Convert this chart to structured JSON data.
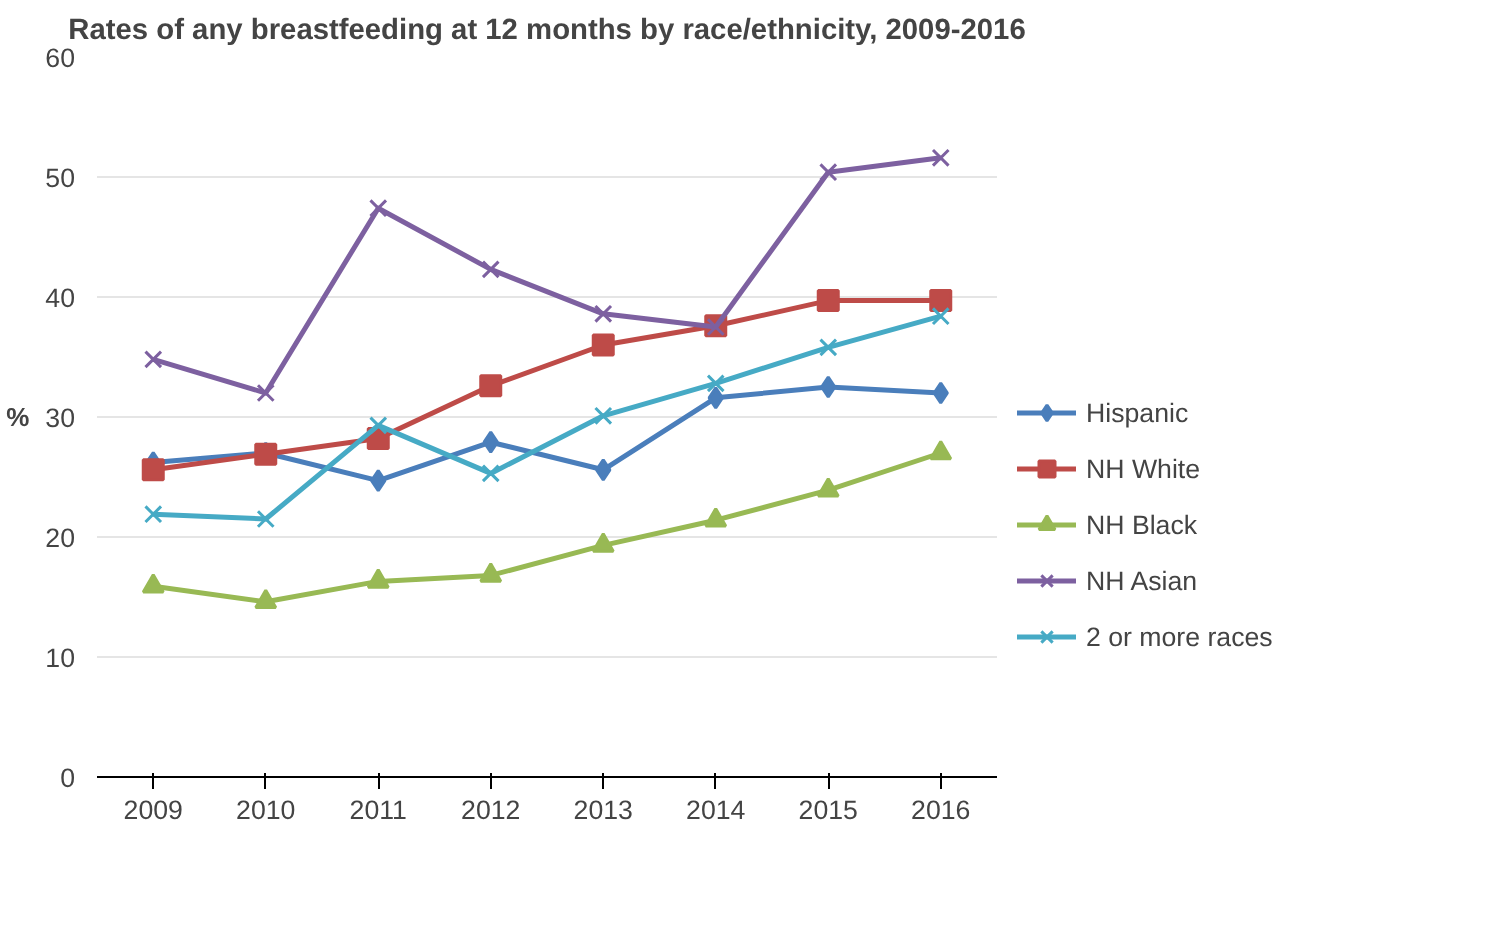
{
  "chart_data": {
    "type": "line",
    "title": "Rates of any breastfeeding at 12 months by race/ethnicity, 2009-2016",
    "ylabel": "%",
    "categories": [
      "2009",
      "2010",
      "2011",
      "2012",
      "2013",
      "2014",
      "2015",
      "2016"
    ],
    "ylim": [
      0,
      60
    ],
    "yticks": [
      0,
      10,
      20,
      30,
      40,
      50,
      60
    ],
    "grid": "y",
    "legend": "right",
    "line_style": "solid",
    "series": [
      {
        "name": "Hispanic",
        "color": "#4a7ebb",
        "marker": "diamond",
        "values": [
          26.2,
          27.0,
          24.7,
          27.9,
          25.6,
          31.6,
          32.5,
          32.0
        ]
      },
      {
        "name": "NH White",
        "color": "#be4b48",
        "marker": "square",
        "values": [
          25.6,
          26.9,
          28.2,
          32.6,
          36.0,
          37.6,
          39.7,
          39.7
        ]
      },
      {
        "name": "NH Black",
        "color": "#98b954",
        "marker": "triangle",
        "values": [
          15.9,
          14.6,
          16.3,
          16.8,
          19.3,
          21.4,
          23.9,
          27.0
        ]
      },
      {
        "name": "NH Asian",
        "color": "#7d60a0",
        "marker": "cross",
        "values": [
          34.8,
          32.0,
          47.4,
          42.3,
          38.6,
          37.5,
          50.4,
          51.6
        ]
      },
      {
        "name": "2 or more races",
        "color": "#46aac5",
        "marker": "cross",
        "values": [
          21.9,
          21.5,
          29.3,
          25.3,
          30.1,
          32.8,
          35.8,
          38.4
        ]
      }
    ]
  }
}
